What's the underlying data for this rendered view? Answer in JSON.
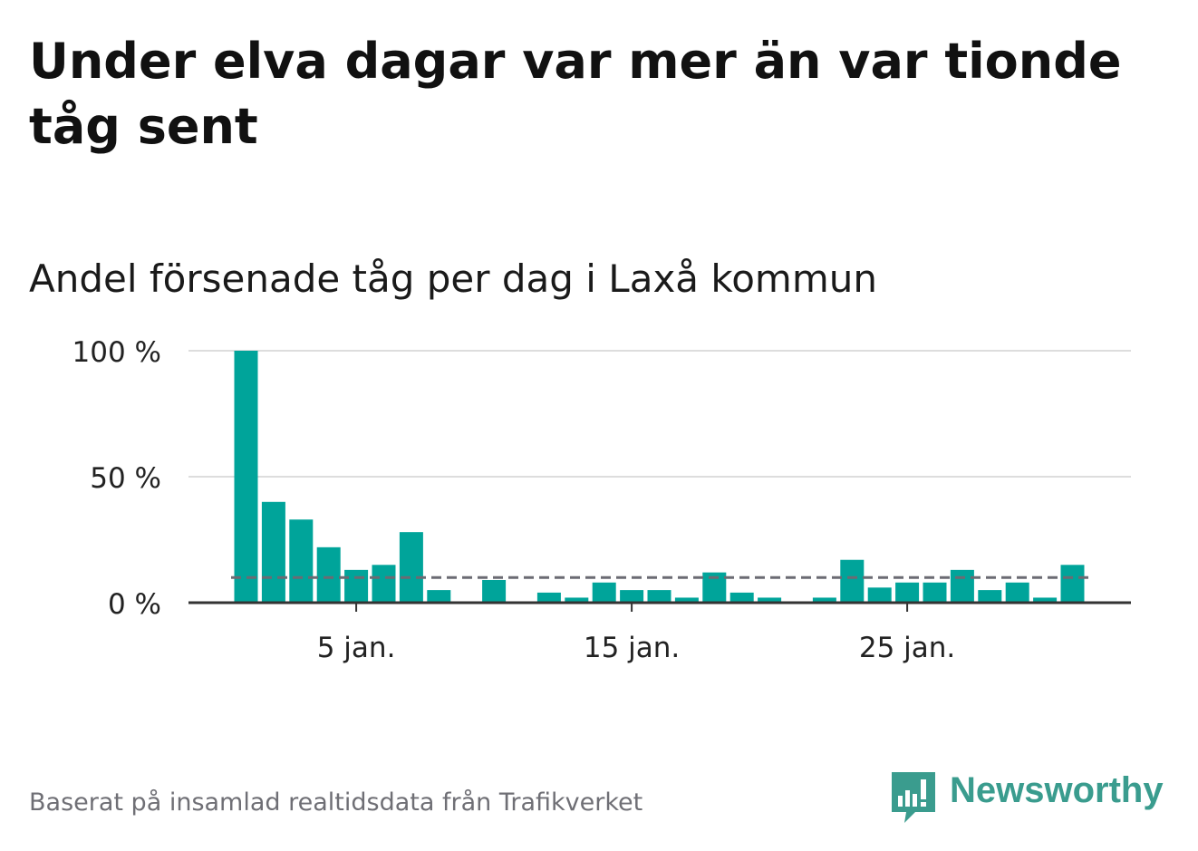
{
  "title": "Under elva dagar var mer än var tionde tåg sent",
  "subtitle": "Andel försenade tåg per dag i Laxå kommun",
  "footer": "Baserat på insamlad realtidsdata från Trafikverket",
  "logo_text": "Newsworthy",
  "colors": {
    "bar": "#00a49a",
    "reference_line": "#6b6b73",
    "grid": "#dddddd",
    "axis": "#333333",
    "logo": "#3a9c8e"
  },
  "chart_data": {
    "type": "bar",
    "title": "Andel försenade tåg per dag i Laxå kommun",
    "x_label_suffix": " jan.",
    "x": [
      1,
      2,
      3,
      4,
      5,
      6,
      7,
      8,
      9,
      10,
      11,
      12,
      13,
      14,
      15,
      16,
      17,
      18,
      19,
      20,
      21,
      22,
      23,
      24,
      25,
      26,
      27,
      28,
      29,
      30,
      31
    ],
    "values": [
      100,
      40,
      33,
      22,
      13,
      15,
      28,
      5,
      0,
      9,
      0,
      4,
      2,
      8,
      5,
      5,
      2,
      12,
      4,
      2,
      0,
      2,
      17,
      6,
      8,
      8,
      13,
      5,
      8,
      2,
      15
    ],
    "xticks": [
      5,
      15,
      25
    ],
    "xtick_labels": [
      "5 jan.",
      "15 jan.",
      "25 jan."
    ],
    "yticks": [
      0,
      50,
      100
    ],
    "ytick_labels": [
      "0 %",
      "50 %",
      "100 %"
    ],
    "ylim": [
      0,
      100
    ],
    "reference_line": 10,
    "grid": true
  }
}
